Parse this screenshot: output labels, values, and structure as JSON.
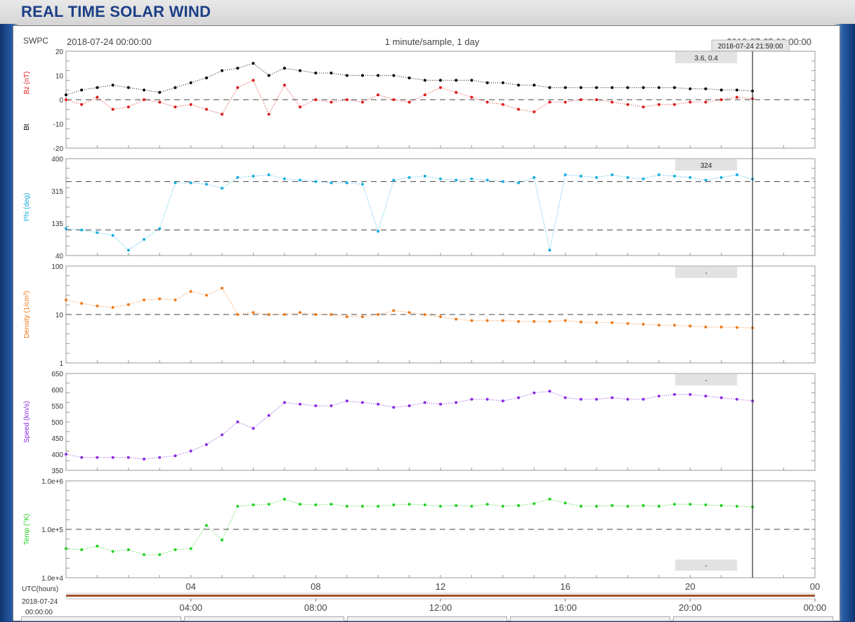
{
  "page": {
    "title": "REAL TIME SOLAR WIND"
  },
  "chart_header": {
    "source": "SWPC",
    "start_time": "2018-07-24 00:00:00",
    "cadence": "1 minute/sample, 1 day",
    "end_time": "2018-07-25 00:00:00",
    "cursor_time": "2018-07-24 21:59:00"
  },
  "utc_label": "UTC(hours)",
  "date_label": "2018-07-24",
  "time_label": "00:00:00",
  "x_ticks_top": [
    "04",
    "08",
    "12",
    "16",
    "20",
    "00"
  ],
  "x_ticks_bottom": [
    "04:00",
    "08:00",
    "12:00",
    "16:00",
    "20:00",
    "00:00"
  ],
  "colors": {
    "bt": "#000000",
    "bz": "#e01a1a",
    "phi": "#1aaee0",
    "density": "#f07a1a",
    "speed": "#8a2be2",
    "temp": "#22d122",
    "timeline": "#a0522d"
  },
  "chart_data": [
    {
      "type": "scatter",
      "ylabel": "Bz (nT)",
      "ylabel2": "Bt",
      "ylim": [
        -20,
        20
      ],
      "yticks": [
        "20",
        "10",
        "0",
        "-10",
        "-20"
      ],
      "reference_lines": [
        0
      ],
      "readout": "3.6, 0.4",
      "series": [
        {
          "name": "Bt",
          "x_hours": [
            0,
            0.5,
            1,
            1.5,
            2,
            2.5,
            3,
            3.5,
            4,
            4.5,
            5,
            5.5,
            6,
            6.5,
            7,
            7.5,
            8,
            8.5,
            9,
            9.5,
            10,
            10.5,
            11,
            11.5,
            12,
            12.5,
            13,
            13.5,
            14,
            14.5,
            15,
            15.5,
            16,
            16.5,
            17,
            17.5,
            18,
            18.5,
            19,
            19.5,
            20,
            20.5,
            21,
            21.5,
            22
          ],
          "values": [
            2,
            4,
            5,
            6,
            5,
            4,
            3,
            5,
            7,
            9,
            12,
            13,
            15,
            10,
            13,
            12,
            11,
            11,
            10,
            10,
            10,
            10,
            9,
            8,
            8,
            8,
            8,
            7,
            7,
            6,
            6,
            5,
            5,
            5,
            5,
            5,
            5,
            5,
            5,
            5,
            4.5,
            4.5,
            4,
            4,
            3.6
          ]
        },
        {
          "name": "Bz",
          "x_hours": [
            0,
            0.5,
            1,
            1.5,
            2,
            2.5,
            3,
            3.5,
            4,
            4.5,
            5,
            5.5,
            6,
            6.5,
            7,
            7.5,
            8,
            8.5,
            9,
            9.5,
            10,
            10.5,
            11,
            11.5,
            12,
            12.5,
            13,
            13.5,
            14,
            14.5,
            15,
            15.5,
            16,
            16.5,
            17,
            17.5,
            18,
            18.5,
            19,
            19.5,
            20,
            20.5,
            21,
            21.5,
            22
          ],
          "values": [
            0,
            -2,
            1,
            -4,
            -3,
            0,
            -1,
            -3,
            -2,
            -4,
            -6,
            5,
            8,
            -6,
            6,
            -3,
            0,
            -1,
            0,
            -1,
            2,
            0,
            -1,
            2,
            5,
            3,
            1,
            -1,
            -2,
            -4,
            -5,
            -1,
            -1,
            0,
            0,
            -1,
            -2,
            -3,
            -2,
            -2,
            -1,
            -1,
            0,
            1,
            0.4
          ]
        }
      ]
    },
    {
      "type": "scatter",
      "ylabel": "Phi (deg)",
      "yticks": [
        "400",
        "315",
        "135",
        "40"
      ],
      "ylim": [
        40,
        400
      ],
      "reference_lines": [
        315,
        135
      ],
      "readout": "324",
      "series": [
        {
          "name": "Phi",
          "x_hours": [
            0,
            0.5,
            1,
            1.5,
            2,
            2.5,
            3,
            3.5,
            4,
            4.5,
            5,
            5.5,
            6,
            6.5,
            7,
            7.5,
            8,
            8.5,
            9,
            9.5,
            10,
            10.5,
            11,
            11.5,
            12,
            12.5,
            13,
            13.5,
            14,
            14.5,
            15,
            15.5,
            16,
            16.5,
            17,
            17.5,
            18,
            18.5,
            19,
            19.5,
            20,
            20.5,
            21,
            21.5,
            22
          ],
          "values": [
            140,
            135,
            125,
            115,
            60,
            100,
            140,
            310,
            310,
            305,
            290,
            330,
            335,
            340,
            325,
            320,
            315,
            310,
            310,
            305,
            130,
            320,
            330,
            335,
            325,
            320,
            325,
            320,
            315,
            310,
            330,
            60,
            340,
            335,
            330,
            340,
            330,
            325,
            340,
            335,
            330,
            320,
            330,
            340,
            324
          ]
        }
      ]
    },
    {
      "type": "scatter",
      "ylabel": "Density (1/cm³)",
      "yscale": "log",
      "ylim": [
        1,
        100
      ],
      "yticks": [
        "100",
        "10",
        "1"
      ],
      "reference_lines": [
        10
      ],
      "readout": "-",
      "series": [
        {
          "name": "Density",
          "x_hours": [
            0,
            0.5,
            1,
            1.5,
            2,
            2.5,
            3,
            3.5,
            4,
            4.5,
            5,
            5.5,
            6,
            6.5,
            7,
            7.5,
            8,
            8.5,
            9,
            9.5,
            10,
            10.5,
            11,
            11.5,
            12,
            12.5,
            13,
            13.5,
            14,
            14.5,
            15,
            15.5,
            16,
            16.5,
            17,
            17.5,
            18,
            18.5,
            19,
            19.5,
            20,
            20.5,
            21,
            21.5,
            22
          ],
          "values": [
            20,
            17,
            15,
            14,
            16,
            20,
            21,
            20,
            30,
            25,
            35,
            10,
            11,
            10,
            10,
            11,
            10,
            10,
            9,
            9,
            10,
            12,
            11,
            10,
            9,
            8,
            7.5,
            7.5,
            7.5,
            7.2,
            7.2,
            7.2,
            7.5,
            7,
            6.8,
            6.8,
            6.5,
            6.3,
            6,
            6,
            5.8,
            5.5,
            5.5,
            5.4,
            5.3
          ]
        }
      ]
    },
    {
      "type": "scatter",
      "ylabel": "Speed (km/s)",
      "ylim": [
        350,
        650
      ],
      "yticks": [
        "650",
        "600",
        "550",
        "500",
        "450",
        "400",
        "350"
      ],
      "readout": "-",
      "series": [
        {
          "name": "Speed",
          "x_hours": [
            0,
            0.5,
            1,
            1.5,
            2,
            2.5,
            3,
            3.5,
            4,
            4.5,
            5,
            5.5,
            6,
            6.5,
            7,
            7.5,
            8,
            8.5,
            9,
            9.5,
            10,
            10.5,
            11,
            11.5,
            12,
            12.5,
            13,
            13.5,
            14,
            14.5,
            15,
            15.5,
            16,
            16.5,
            17,
            17.5,
            18,
            18.5,
            19,
            19.5,
            20,
            20.5,
            21,
            21.5,
            22
          ],
          "values": [
            400,
            390,
            390,
            390,
            390,
            385,
            390,
            395,
            410,
            430,
            460,
            500,
            480,
            520,
            560,
            555,
            550,
            550,
            565,
            560,
            555,
            545,
            550,
            560,
            555,
            560,
            570,
            570,
            565,
            575,
            590,
            595,
            575,
            570,
            570,
            575,
            570,
            570,
            580,
            585,
            585,
            580,
            575,
            570,
            565
          ]
        }
      ]
    },
    {
      "type": "scatter",
      "ylabel": "Temp (°K)",
      "yscale": "log",
      "ylim": [
        10000,
        1000000
      ],
      "yticks": [
        "1.0e+6",
        "1.0e+5",
        "1.0e+4"
      ],
      "reference_lines": [
        100000
      ],
      "readout": "-",
      "series": [
        {
          "name": "Temp",
          "x_hours": [
            0,
            0.5,
            1,
            1.5,
            2,
            2.5,
            3,
            3.5,
            4,
            4.5,
            5,
            5.5,
            6,
            6.5,
            7,
            7.5,
            8,
            8.5,
            9,
            9.5,
            10,
            10.5,
            11,
            11.5,
            12,
            12.5,
            13,
            13.5,
            14,
            14.5,
            15,
            15.5,
            16,
            16.5,
            17,
            17.5,
            18,
            18.5,
            19,
            19.5,
            20,
            20.5,
            21,
            21.5,
            22
          ],
          "values": [
            40000,
            38000,
            45000,
            35000,
            38000,
            30000,
            30000,
            38000,
            40000,
            120000,
            60000,
            300000,
            320000,
            330000,
            420000,
            330000,
            320000,
            330000,
            300000,
            300000,
            300000,
            320000,
            330000,
            320000,
            300000,
            310000,
            300000,
            330000,
            300000,
            310000,
            340000,
            420000,
            350000,
            300000,
            300000,
            310000,
            300000,
            310000,
            300000,
            330000,
            330000,
            320000,
            310000,
            300000,
            290000
          ]
        }
      ]
    }
  ]
}
